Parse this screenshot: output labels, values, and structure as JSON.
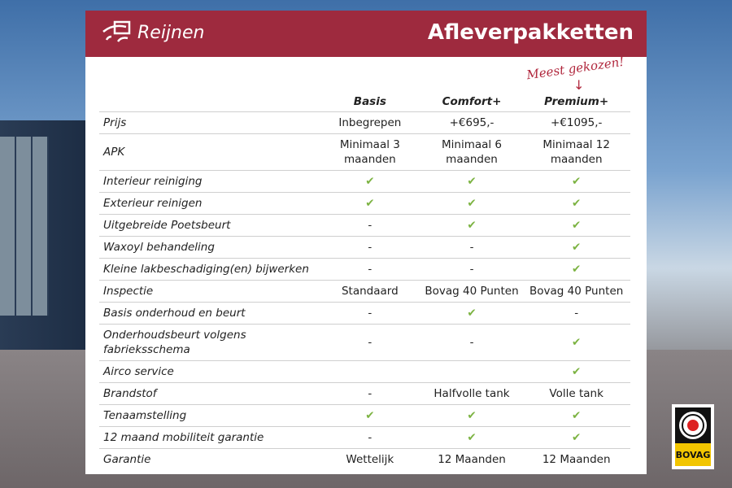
{
  "brand": "Reijnen",
  "title": "Afleverpakketten",
  "note": "Meest gekozen!",
  "columns": [
    "Basis",
    "Comfort+",
    "Premium+"
  ],
  "check_color": "#7cb342",
  "header_color": "#9e2a3e",
  "rows": [
    {
      "label": "Prijs",
      "values": [
        "Inbegrepen",
        "+€695,-",
        "+€1095,-"
      ]
    },
    {
      "label": "APK",
      "values": [
        "Minimaal 3 maanden",
        "Minimaal 6 maanden",
        "Minimaal 12 maanden"
      ],
      "tall": true
    },
    {
      "label": "Interieur reiniging",
      "values": [
        "✔",
        "✔",
        "✔"
      ]
    },
    {
      "label": "Exterieur reinigen",
      "values": [
        "✔",
        "✔",
        "✔"
      ]
    },
    {
      "label": "Uitgebreide Poetsbeurt",
      "values": [
        "-",
        "✔",
        "✔"
      ]
    },
    {
      "label": "Waxoyl behandeling",
      "values": [
        "-",
        "-",
        "✔"
      ]
    },
    {
      "label": "Kleine lakbeschadiging(en) bijwerken",
      "values": [
        "-",
        "-",
        "✔"
      ]
    },
    {
      "label": "Inspectie",
      "values": [
        "Standaard",
        "Bovag 40 Punten",
        "Bovag 40 Punten"
      ]
    },
    {
      "label": "Basis onderhoud en beurt",
      "values": [
        "-",
        "✔",
        "-"
      ]
    },
    {
      "label": "Onderhoudsbeurt volgens fabrieksschema",
      "values": [
        "-",
        "-",
        "✔"
      ],
      "tall": true
    },
    {
      "label": "Airco service",
      "values": [
        "",
        "",
        "✔"
      ]
    },
    {
      "label": "Brandstof",
      "values": [
        "-",
        "Halfvolle tank",
        "Volle tank"
      ]
    },
    {
      "label": "Tenaamstelling",
      "values": [
        "✔",
        "✔",
        "✔"
      ]
    },
    {
      "label": "12 maand mobiliteit garantie",
      "values": [
        "-",
        "✔",
        "✔"
      ]
    },
    {
      "label": "Garantie",
      "values": [
        "Wettelijk",
        "12 Maanden",
        "12 Maanden"
      ]
    }
  ],
  "bovag": "BOVAG"
}
